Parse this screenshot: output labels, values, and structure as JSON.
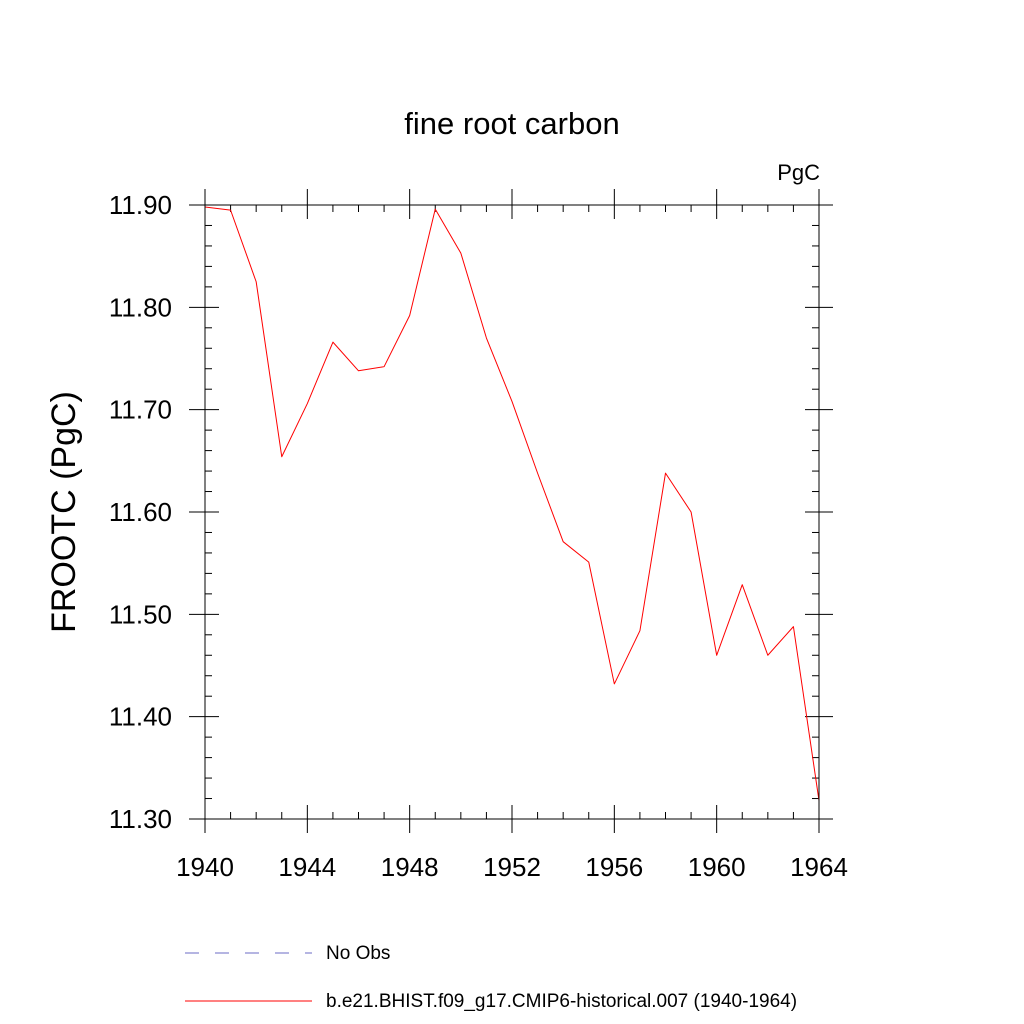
{
  "chart_data": {
    "type": "line",
    "title": "fine root carbon",
    "units_label": "PgC",
    "xlabel": "",
    "ylabel": "FROOTC  (PgC)",
    "xlim": [
      1940,
      1964
    ],
    "ylim": [
      11.3,
      11.9
    ],
    "x_ticks": [
      1940,
      1944,
      1948,
      1952,
      1956,
      1960,
      1964
    ],
    "x_tick_labels": [
      "1940",
      "1944",
      "1948",
      "1952",
      "1956",
      "1960",
      "1964"
    ],
    "y_ticks": [
      11.3,
      11.4,
      11.5,
      11.6,
      11.7,
      11.8,
      11.9
    ],
    "y_tick_labels": [
      "11.30",
      "11.40",
      "11.50",
      "11.60",
      "11.70",
      "11.80",
      "11.90"
    ],
    "x_minor_step": 1,
    "y_minor_step": 0.02,
    "series": [
      {
        "name": "b.e21.BHIST.f09_g17.CMIP6-historical.007 (1940-1964)",
        "color": "#ff0000",
        "style": "solid",
        "x": [
          1940,
          1941,
          1942,
          1943,
          1944,
          1945,
          1946,
          1947,
          1948,
          1949,
          1950,
          1951,
          1952,
          1953,
          1954,
          1955,
          1956,
          1957,
          1958,
          1959,
          1960,
          1961,
          1962,
          1963,
          1964
        ],
        "values": [
          11.898,
          11.895,
          11.825,
          11.654,
          11.706,
          11.766,
          11.738,
          11.742,
          11.792,
          11.896,
          11.853,
          11.77,
          11.708,
          11.638,
          11.571,
          11.551,
          11.432,
          11.484,
          11.638,
          11.6,
          11.46,
          11.529,
          11.46,
          11.488,
          11.318
        ]
      }
    ],
    "legend": [
      {
        "label": "No Obs",
        "color": "#6b6bc4",
        "style": "dashed"
      },
      {
        "label": "b.e21.BHIST.f09_g17.CMIP6-historical.007 (1940-1964)",
        "color": "#ff0000",
        "style": "solid"
      }
    ],
    "legend_position": "bottom",
    "grid": false
  }
}
